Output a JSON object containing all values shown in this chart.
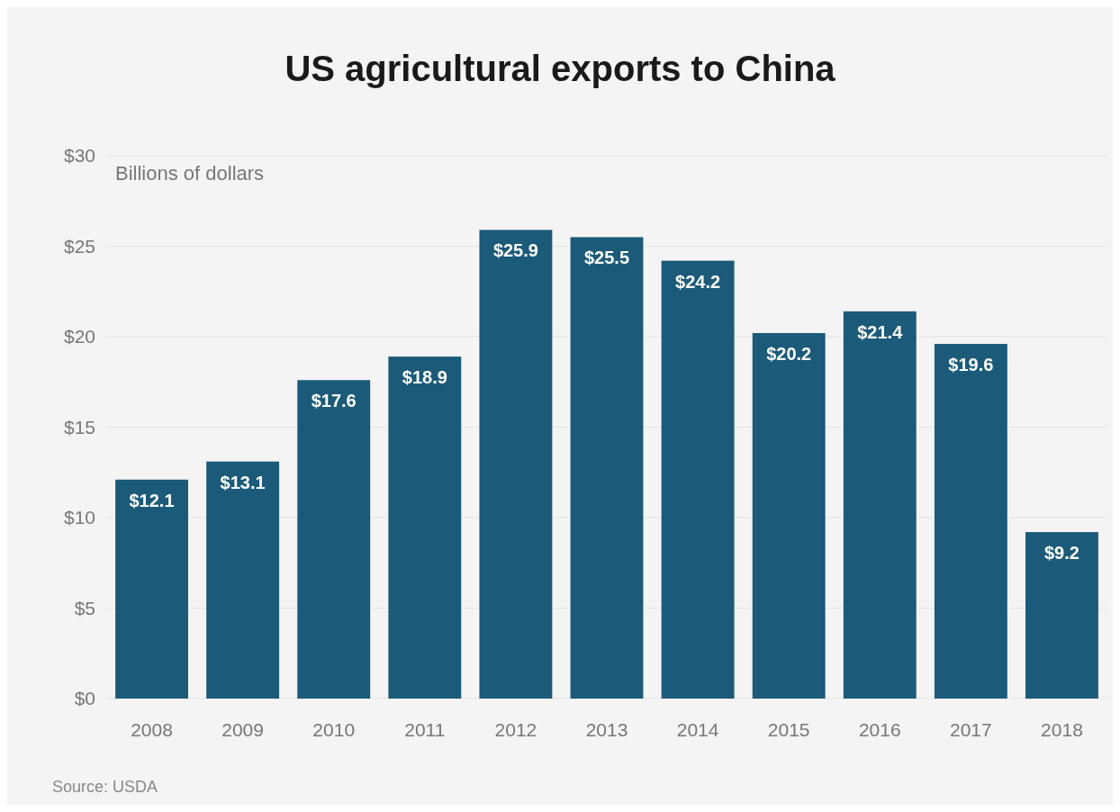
{
  "chart_data": {
    "type": "bar",
    "title": "US agricultural exports to China",
    "ylabel": "Billions of dollars",
    "categories": [
      "2008",
      "2009",
      "2010",
      "2011",
      "2012",
      "2013",
      "2014",
      "2015",
      "2016",
      "2017",
      "2018"
    ],
    "values": [
      12.1,
      13.1,
      17.6,
      18.9,
      25.9,
      25.5,
      24.2,
      20.2,
      21.4,
      19.6,
      9.2
    ],
    "value_labels": [
      "$12.1",
      "$13.1",
      "$17.6",
      "$18.9",
      "$25.9",
      "$25.5",
      "$24.2",
      "$20.2",
      "$21.4",
      "$19.6",
      "$9.2"
    ],
    "color": "#1b5a79",
    "ylim": [
      0,
      30
    ],
    "yticks": [
      {
        "value": 0,
        "label": "$0"
      },
      {
        "value": 5,
        "label": "$5"
      },
      {
        "value": 10,
        "label": "$10"
      },
      {
        "value": 15,
        "label": "$15"
      },
      {
        "value": 20,
        "label": "$20"
      },
      {
        "value": 25,
        "label": "$25"
      },
      {
        "value": 30,
        "label": "$30"
      }
    ],
    "grid": "y",
    "annotations": [
      "Source: USDA"
    ]
  }
}
